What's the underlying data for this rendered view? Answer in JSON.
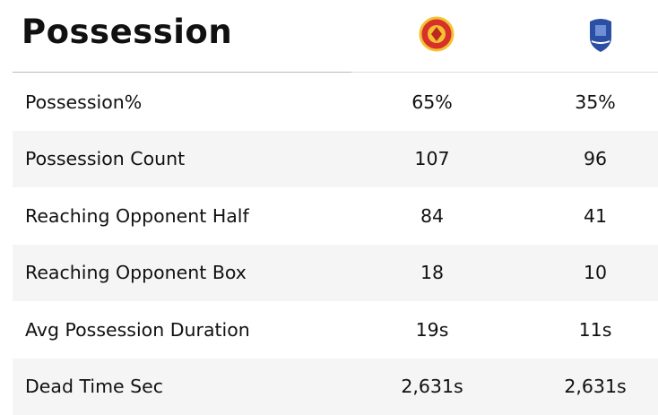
{
  "header": {
    "title": "Possession"
  },
  "table": {
    "rows": [
      [
        "Possession%",
        "65%",
        "35%"
      ],
      [
        "Possession Count",
        "107",
        "96"
      ],
      [
        "Reaching Opponent Half",
        "84",
        "41"
      ],
      [
        "Reaching Opponent Box",
        "18",
        "10"
      ],
      [
        "Avg Possession Duration",
        "19s",
        "11s"
      ],
      [
        "Dead Time Sec",
        "2,631s",
        "2,631s"
      ]
    ]
  }
}
